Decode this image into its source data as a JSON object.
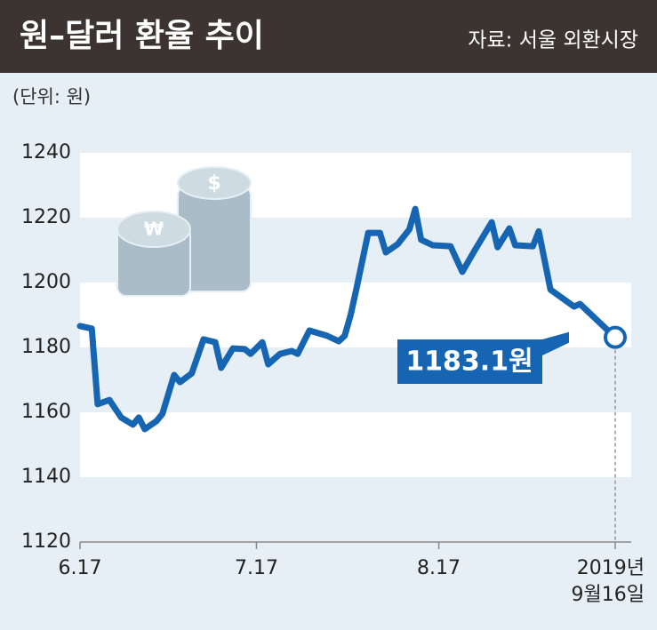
{
  "chart_data": {
    "type": "line",
    "title": "원–달러 환율 추이",
    "source": "자료: 서울 외환시장",
    "unit": "(단위: 원)",
    "x": [
      0,
      2,
      3,
      5,
      7,
      9,
      10,
      11,
      13,
      14,
      16,
      17,
      19,
      21,
      23,
      24,
      26,
      28,
      29,
      31,
      32,
      34,
      36,
      37,
      39,
      42,
      44,
      45,
      46,
      47,
      49,
      51,
      52,
      54,
      56,
      57,
      58,
      60,
      63,
      65,
      67,
      70,
      71,
      73,
      74,
      77,
      78,
      80,
      84,
      85,
      91
    ],
    "series": [
      {
        "name": "원–달러 환율",
        "color": "#1565b3",
        "values": [
          1186.6,
          1185.8,
          1162.5,
          1163.8,
          1158.4,
          1156.2,
          1158.4,
          1154.8,
          1157.3,
          1159.5,
          1171.5,
          1169.3,
          1172,
          1182.5,
          1181.6,
          1173.7,
          1179.7,
          1179.5,
          1178,
          1181.6,
          1174.8,
          1178,
          1178.9,
          1178,
          1185.2,
          1183.6,
          1181.9,
          1183.6,
          1189.9,
          1198.1,
          1215.3,
          1215.3,
          1209.3,
          1211.8,
          1216.4,
          1222.7,
          1213.2,
          1211.5,
          1211.2,
          1203.3,
          1209.6,
          1218.6,
          1210.9,
          1216.7,
          1211.5,
          1211.2,
          1215.8,
          1197.8,
          1192.6,
          1193.4,
          1183.1
        ]
      }
    ],
    "annotation": {
      "text": "1183.1원",
      "value": 1183.1
    },
    "xlim": [
      0,
      91
    ],
    "xticks": [
      {
        "value": 0,
        "label": "6.17"
      },
      {
        "value": 30,
        "label": "7.17"
      },
      {
        "value": 61,
        "label": "8.17"
      },
      {
        "value": 91,
        "label": "2019년 9월16일"
      }
    ],
    "ylim": [
      1120,
      1240
    ],
    "yticks": [
      1120,
      1140,
      1160,
      1180,
      1200,
      1220,
      1240
    ],
    "grid": "bands"
  }
}
